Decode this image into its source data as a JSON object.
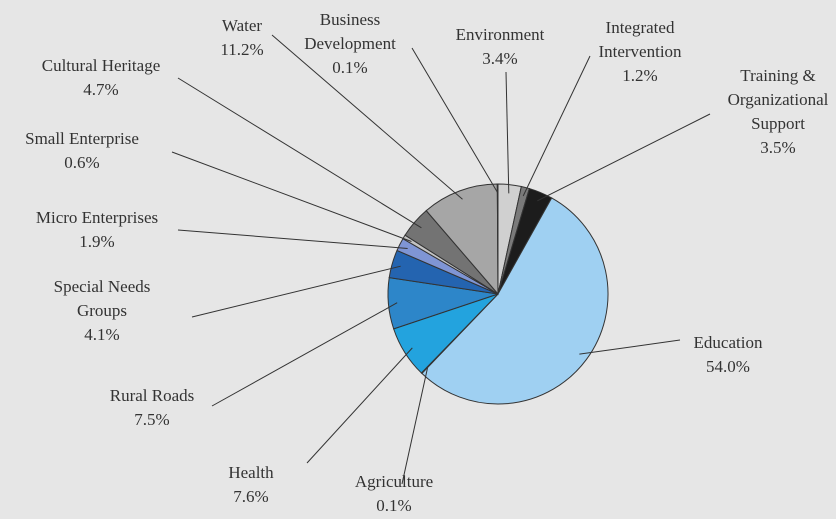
{
  "chart_data": {
    "type": "pie",
    "title": "",
    "start_angle_deg": 90,
    "direction": "clockwise",
    "slices": [
      {
        "label": [
          "Environment"
        ],
        "value_label": "3.4%",
        "value": 3.4,
        "color": "#d0d0d0"
      },
      {
        "label": [
          "Integrated",
          "Intervention"
        ],
        "value_label": "1.2%",
        "value": 1.2,
        "color": "#7a7a7a"
      },
      {
        "label": [
          "Training &",
          "Organizational",
          "Support"
        ],
        "value_label": "3.5%",
        "value": 3.5,
        "color": "#1c1c1c"
      },
      {
        "label": [
          "Education"
        ],
        "value_label": "54.0%",
        "value": 54.0,
        "color": "#9fd0f2"
      },
      {
        "label": [
          "Agriculture"
        ],
        "value_label": "0.1%",
        "value": 0.1,
        "color": "#8fc6f0"
      },
      {
        "label": [
          "Health"
        ],
        "value_label": "7.6%",
        "value": 7.6,
        "color": "#23a3de"
      },
      {
        "label": [
          "Rural Roads"
        ],
        "value_label": "7.5%",
        "value": 7.5,
        "color": "#2d86c9"
      },
      {
        "label": [
          "Special Needs",
          "Groups"
        ],
        "value_label": "4.1%",
        "value": 4.1,
        "color": "#2464b0"
      },
      {
        "label": [
          "Micro Enterprises"
        ],
        "value_label": "1.9%",
        "value": 1.9,
        "color": "#7f95d4"
      },
      {
        "label": [
          "Small Enterprise"
        ],
        "value_label": "0.6%",
        "value": 0.6,
        "color": "#c3c3c3"
      },
      {
        "label": [
          "Cultural  Heritage"
        ],
        "value_label": "4.7%",
        "value": 4.7,
        "color": "#737373"
      },
      {
        "label": [
          "Water"
        ],
        "value_label": "11.2%",
        "value": 11.2,
        "color": "#a6a6a6"
      },
      {
        "label": [
          "Business",
          "Development"
        ],
        "value_label": "0.1%",
        "value": 0.1,
        "color": "#8a8a8a"
      }
    ]
  }
}
